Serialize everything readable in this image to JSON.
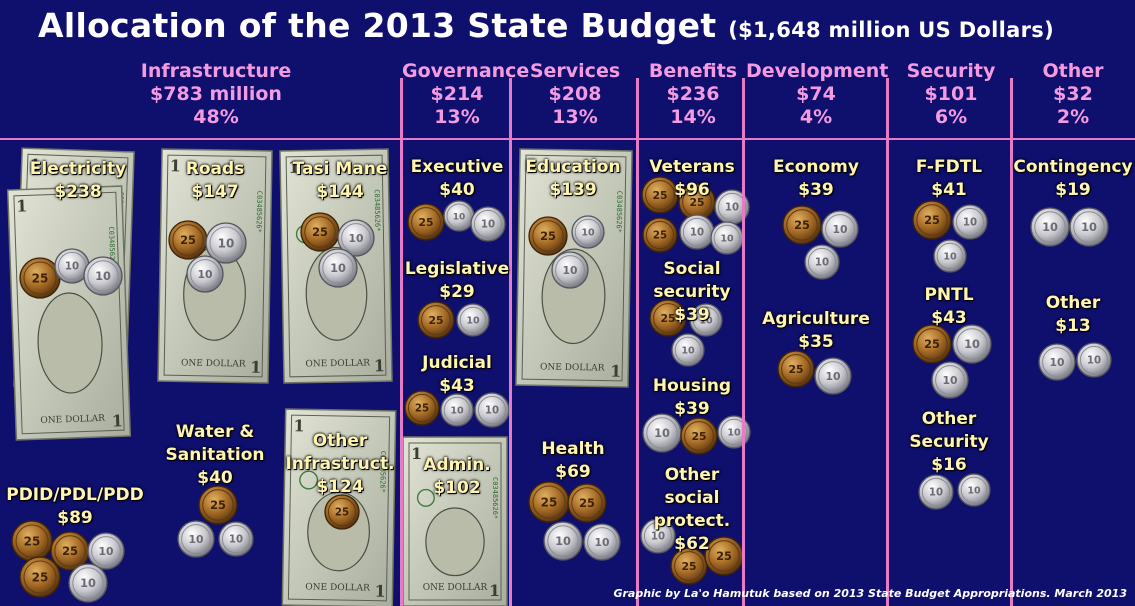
{
  "title": {
    "main": "Allocation of the 2013 State Budget",
    "sub": "($1,648 million US Dollars)"
  },
  "colors": {
    "background": "#0f0f6e",
    "category": "#f39be0",
    "item": "#fff4b0",
    "divider": "#e67cc7"
  },
  "categories": [
    {
      "name": "Infrastructure",
      "amount": "$783 million",
      "share": "48%"
    },
    {
      "name": "Governance",
      "amount": "$214",
      "share": "13%"
    },
    {
      "name": "Services",
      "amount": "$208",
      "share": "13%"
    },
    {
      "name": "Benefits",
      "amount": "$236",
      "share": "14%"
    },
    {
      "name": "Development",
      "amount": "$74",
      "share": "4%"
    },
    {
      "name": "Security",
      "amount": "$101",
      "share": "6%"
    },
    {
      "name": "Other",
      "amount": "$32",
      "share": "2%"
    }
  ],
  "items": {
    "electricity": {
      "label": "Electricity",
      "amount": "$238"
    },
    "roads": {
      "label": "Roads",
      "amount": "$147"
    },
    "tasi_mane": {
      "label": "Tasi Mane",
      "amount": "$144"
    },
    "pdid": {
      "label": "PDID/PDL/PDD",
      "amount": "$89"
    },
    "water": {
      "label1": "Water &",
      "label2": "Sanitation",
      "amount": "$40"
    },
    "other_infra": {
      "label1": "Other",
      "label2": "Infrastruct.",
      "amount": "$124"
    },
    "executive": {
      "label": "Executive",
      "amount": "$40"
    },
    "legislative": {
      "label": "Legislative",
      "amount": "$29"
    },
    "judicial": {
      "label": "Judicial",
      "amount": "$43"
    },
    "admin": {
      "label": "Admin.",
      "amount": "$102"
    },
    "education": {
      "label": "Education",
      "amount": "$139"
    },
    "health": {
      "label": "Health",
      "amount": "$69"
    },
    "veterans": {
      "label": "Veterans",
      "amount": "$96"
    },
    "social_security": {
      "label1": "Social",
      "label2": "security",
      "amount": "$39"
    },
    "housing": {
      "label": "Housing",
      "amount": "$39"
    },
    "other_social": {
      "label1": "Other",
      "label2": "social",
      "label3": "protect.",
      "amount": "$62"
    },
    "economy": {
      "label": "Economy",
      "amount": "$39"
    },
    "agriculture": {
      "label": "Agriculture",
      "amount": "$35"
    },
    "ffdtl": {
      "label": "F-FDTL",
      "amount": "$41"
    },
    "pntl": {
      "label": "PNTL",
      "amount": "$43"
    },
    "other_security": {
      "label1": "Other",
      "label2": "Security",
      "amount": "$16"
    },
    "contingency": {
      "label": "Contingency",
      "amount": "$19"
    },
    "other_other": {
      "label": "Other",
      "amount": "$13"
    }
  },
  "banknote": {
    "series": "C03485626*",
    "label": "ONE DOLLAR",
    "numeral": "1"
  },
  "coins": {
    "copper": "25",
    "silver": "10"
  },
  "credit": "Graphic by La'o Hamutuk based on 2013 State Budget Appropriations.  March 2013"
}
